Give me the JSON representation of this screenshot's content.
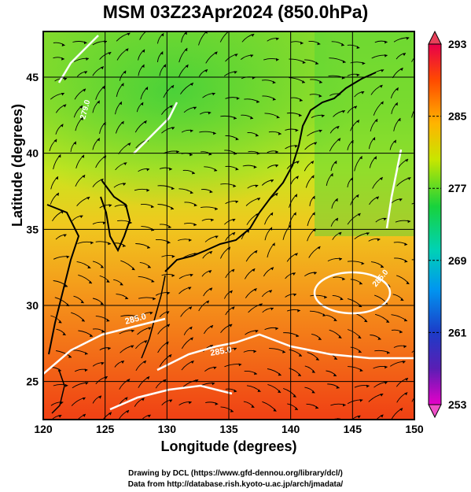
{
  "title": "MSM 03Z23Apr2024 (850.0hPa)",
  "map": {
    "xlabel": "Longitude (degrees)",
    "ylabel": "Latitude  (degrees)",
    "lon_range": [
      120,
      150
    ],
    "lat_range": [
      22.5,
      48
    ],
    "x_ticks": [
      "120",
      "125",
      "130",
      "135",
      "140",
      "145",
      "150"
    ],
    "y_ticks": [
      "25",
      "30",
      "35",
      "40",
      "45"
    ],
    "contour_labels": [
      "285.0",
      "285.0",
      "279.0",
      "285.0"
    ],
    "colorbar": {
      "ticks": [
        "293",
        "285",
        "277",
        "269",
        "261",
        "253"
      ],
      "colors": [
        "#e8004a",
        "#ff6a00",
        "#ffd200",
        "#7ce000",
        "#00d23c",
        "#00c8b4",
        "#0090f0",
        "#1c3cc8",
        "#3c1ea0",
        "#c800c8"
      ]
    }
  },
  "footer": {
    "line1": "Drawing by DCL (https://www.gfd-dennou.org/library/dcl/)",
    "line2": "Data from http://database.rish.kyoto-u.ac.jp/arch/jmadata/"
  }
}
